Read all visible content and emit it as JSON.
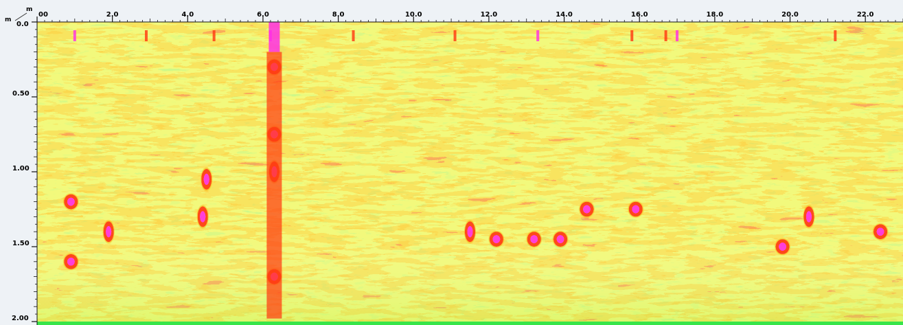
{
  "chart_data": {
    "type": "heatmap",
    "title": "",
    "xlabel": "m",
    "ylabel": "m",
    "corner_label_top": "m",
    "corner_label_left": "m",
    "x_tick_values": [
      0.0,
      2.0,
      4.0,
      6.0,
      8.0,
      10.0,
      12.0,
      14.0,
      16.0,
      18.0,
      20.0,
      22.0
    ],
    "x_tick_labels": [
      "00",
      "2.0",
      "4.0",
      "6.0",
      "8.0",
      "10.0",
      "12.0",
      "14.0",
      "16.0",
      "18.0",
      "20.0",
      "22.0"
    ],
    "y_tick_values": [
      0.0,
      0.5,
      1.0,
      1.5,
      2.0
    ],
    "y_tick_labels": [
      "0.0",
      "0.50",
      "1.00",
      "1.50",
      "2.00"
    ],
    "xlim": [
      0.0,
      23.0
    ],
    "ylim": [
      0.0,
      2.0
    ],
    "y_inverted": true,
    "grid": false,
    "colors": {
      "background": "#ffffff",
      "axis_band": "#eef2f6",
      "level_1": "#39e64c",
      "level_2": "#9ff03f",
      "level_3": "#e2f233",
      "level_4": "#f8b015",
      "level_5": "#ff3b12",
      "level_6": "#ff2fe4",
      "bottom_strip": "#38e54a",
      "tick_color": "#111111"
    },
    "series": [
      {
        "values": [
          {
            "x": 6.3,
            "y": 1.0,
            "value": 6
          },
          {
            "x": 6.3,
            "y": 0.75,
            "value": 5
          },
          {
            "x": 6.3,
            "y": 0.3,
            "value": 5
          },
          {
            "x": 6.3,
            "y": 1.7,
            "value": 5
          },
          {
            "x": 13.2,
            "y": 1.45,
            "value": 5
          },
          {
            "x": 11.5,
            "y": 1.4,
            "value": 6
          },
          {
            "x": 1.9,
            "y": 1.4,
            "value": 6
          },
          {
            "x": 4.5,
            "y": 1.05,
            "value": 6
          },
          {
            "x": 4.4,
            "y": 1.3,
            "value": 6
          },
          {
            "x": 14.6,
            "y": 1.25,
            "value": 5
          },
          {
            "x": 15.9,
            "y": 1.25,
            "value": 5
          },
          {
            "x": 19.8,
            "y": 1.5,
            "value": 5
          },
          {
            "x": 20.5,
            "y": 1.3,
            "value": 6
          },
          {
            "x": 0.9,
            "y": 1.2,
            "value": 5
          },
          {
            "x": 0.9,
            "y": 1.6,
            "value": 5
          },
          {
            "x": 12.2,
            "y": 1.45,
            "value": 5
          },
          {
            "x": 13.9,
            "y": 1.45,
            "value": 5
          },
          {
            "x": 22.4,
            "y": 1.4,
            "value": 5
          }
        ]
      }
    ]
  }
}
